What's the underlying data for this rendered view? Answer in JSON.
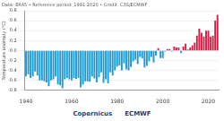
{
  "chart_data": {
    "type": "bar",
    "subtitle": "Data: ERA5 • Reference period: 1991-2020 • Credit: C3S/ECMWF",
    "y_label": "Temperature anomaly (°C)",
    "annotations": [
      "Copernicus",
      "ECMWF"
    ],
    "categories": [
      "1940",
      null,
      null,
      null,
      null,
      null,
      null,
      null,
      null,
      null,
      null,
      null,
      null,
      null,
      null,
      null,
      null,
      null,
      null,
      null,
      "1960",
      null,
      null,
      null,
      null,
      null,
      null,
      null,
      null,
      null,
      null,
      null,
      null,
      null,
      null,
      null,
      null,
      null,
      null,
      null,
      "1980",
      null,
      null,
      null,
      null,
      null,
      null,
      null,
      null,
      null,
      null,
      null,
      null,
      null,
      null,
      null,
      null,
      null,
      null,
      null,
      "2000",
      null,
      null,
      null,
      null,
      null,
      null,
      null,
      null,
      null,
      null,
      null,
      null,
      null,
      null,
      null,
      null,
      null,
      null,
      null,
      "2020",
      null,
      null,
      null,
      null
    ],
    "values": [
      -0.52,
      -0.48,
      -0.55,
      -0.52,
      -0.42,
      -0.5,
      -0.6,
      -0.6,
      -0.62,
      -0.64,
      -0.72,
      -0.6,
      -0.58,
      -0.52,
      -0.68,
      -0.7,
      -0.76,
      -0.58,
      -0.55,
      -0.58,
      -0.6,
      -0.55,
      -0.57,
      -0.55,
      -0.74,
      -0.68,
      -0.62,
      -0.62,
      -0.63,
      -0.52,
      -0.56,
      -0.64,
      -0.54,
      -0.44,
      -0.65,
      -0.58,
      -0.66,
      -0.44,
      -0.5,
      -0.4,
      -0.32,
      -0.3,
      -0.4,
      -0.26,
      -0.38,
      -0.4,
      -0.33,
      -0.22,
      -0.18,
      -0.27,
      -0.13,
      -0.16,
      -0.34,
      -0.31,
      -0.22,
      -0.13,
      -0.24,
      -0.1,
      0.05,
      -0.15,
      -0.15,
      -0.02,
      0.03,
      0.03,
      -0.02,
      0.08,
      0.06,
      0.06,
      -0.05,
      0.08,
      0.14,
      0.02,
      0.06,
      0.1,
      0.16,
      0.3,
      0.44,
      0.36,
      0.28,
      0.4,
      0.4,
      0.28,
      0.3,
      0.6,
      0.72
    ],
    "colors": [
      "#1a9ad6",
      "#1a9ad6",
      "#1a9ad6",
      "#1a9ad6",
      "#1a9ad6",
      "#1a9ad6",
      "#1a9ad6",
      "#1a9ad6",
      "#1a9ad6",
      "#1a9ad6",
      "#1a9ad6",
      "#1a9ad6",
      "#1a9ad6",
      "#1a9ad6",
      "#1a9ad6",
      "#1a9ad6",
      "#1a9ad6",
      "#1a9ad6",
      "#1a9ad6",
      "#1a9ad6",
      "#1a9ad6",
      "#1a9ad6",
      "#1a9ad6",
      "#1a9ad6",
      "#1a9ad6",
      "#1a9ad6",
      "#1a9ad6",
      "#1a9ad6",
      "#1a9ad6",
      "#1a9ad6",
      "#1a9ad6",
      "#1a9ad6",
      "#1a9ad6",
      "#1a9ad6",
      "#1a9ad6",
      "#1a9ad6",
      "#1a9ad6",
      "#1a9ad6",
      "#1a9ad6",
      "#1a9ad6",
      "#1a9ad6",
      "#1a9ad6",
      "#1a9ad6",
      "#1a9ad6",
      "#1a9ad6",
      "#1a9ad6",
      "#1a9ad6",
      "#1a9ad6",
      "#1a9ad6",
      "#1a9ad6",
      "#1a9ad6",
      "#1a9ad6",
      "#1a9ad6",
      "#1a9ad6",
      "#1a9ad6",
      "#1a9ad6",
      "#1a9ad6",
      "#1a9ad6",
      "#d61e43",
      "#1a9ad6",
      "#1a9ad6",
      "#1a9ad6",
      "#d61e43",
      "#d61e43",
      "#1a9ad6",
      "#d61e43",
      "#d61e43",
      "#d61e43",
      "#1a9ad6",
      "#d61e43",
      "#d61e43",
      "#d61e43",
      "#d61e43",
      "#d61e43",
      "#d61e43",
      "#d61e43",
      "#d61e43",
      "#d61e43",
      "#d61e43",
      "#d61e43",
      "#d61e43",
      "#d61e43",
      "#d61e43",
      "#d61e43",
      "#d61e43"
    ],
    "ylim": [
      -0.8,
      0.8
    ],
    "yticks": [
      -0.8,
      -0.6,
      -0.4,
      -0.2,
      {
        "value": 0,
        "label": "0.0"
      },
      0.2,
      0.4,
      0.6,
      0.8
    ],
    "grid": true
  }
}
